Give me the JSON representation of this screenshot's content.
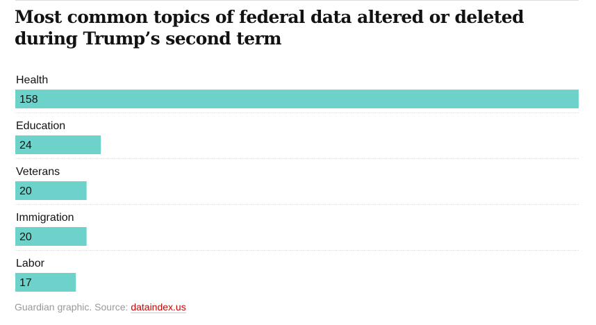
{
  "chart_data": {
    "type": "bar",
    "orientation": "horizontal",
    "title": "Most common topics of federal data altered or deleted during Trump’s second term",
    "categories": [
      "Health",
      "Education",
      "Veterans",
      "Immigration",
      "Labor"
    ],
    "values": [
      158,
      24,
      20,
      20,
      17
    ],
    "xlim": [
      0,
      158
    ],
    "bar_color": "#6dd3ca",
    "grid": false
  },
  "source": {
    "prefix": "Guardian graphic. Source: ",
    "link_text": "dataindex.us"
  },
  "colors": {
    "bar": "#6dd3ca",
    "source_text": "#999999",
    "link": "#c70000",
    "divider": "#dcdcdc"
  }
}
